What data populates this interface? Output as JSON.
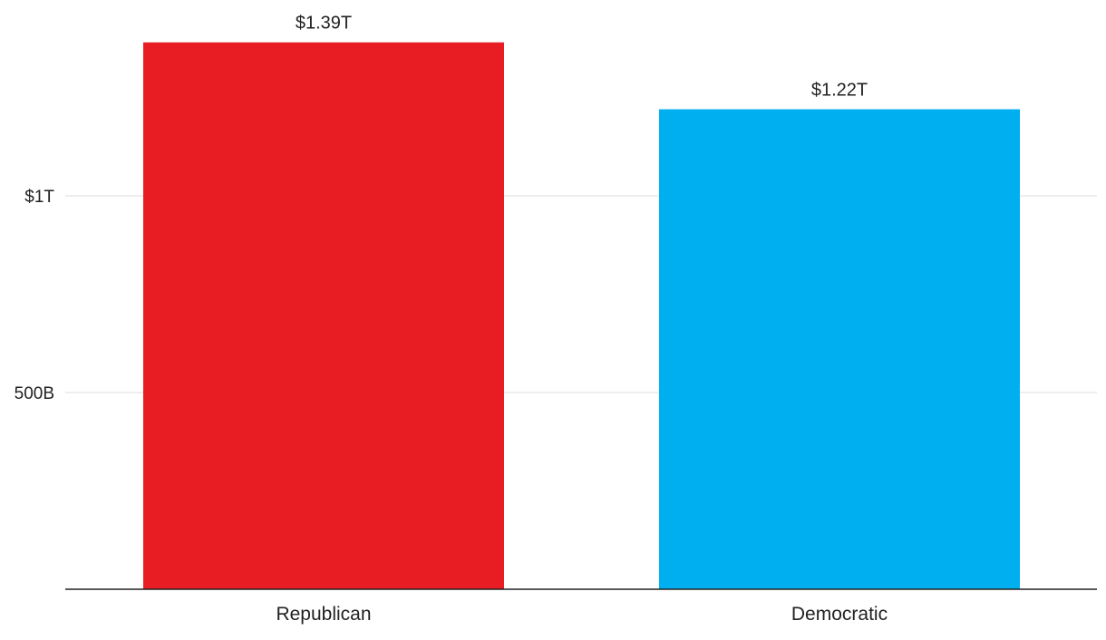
{
  "chart_data": {
    "type": "bar",
    "title": "",
    "xlabel": "",
    "ylabel": "",
    "categories": [
      "Republican",
      "Democratic"
    ],
    "values": [
      1390000000000,
      1220000000000
    ],
    "value_labels": [
      "$1.39T",
      "$1.22T"
    ],
    "colors": [
      "#e81c23",
      "#00aff0"
    ],
    "ylim": [
      0,
      1400000000000
    ],
    "yticks": [
      {
        "value": 500000000000,
        "label": "500B"
      },
      {
        "value": 1000000000000,
        "label": "$1T"
      }
    ],
    "grid": true,
    "legend": "none"
  }
}
